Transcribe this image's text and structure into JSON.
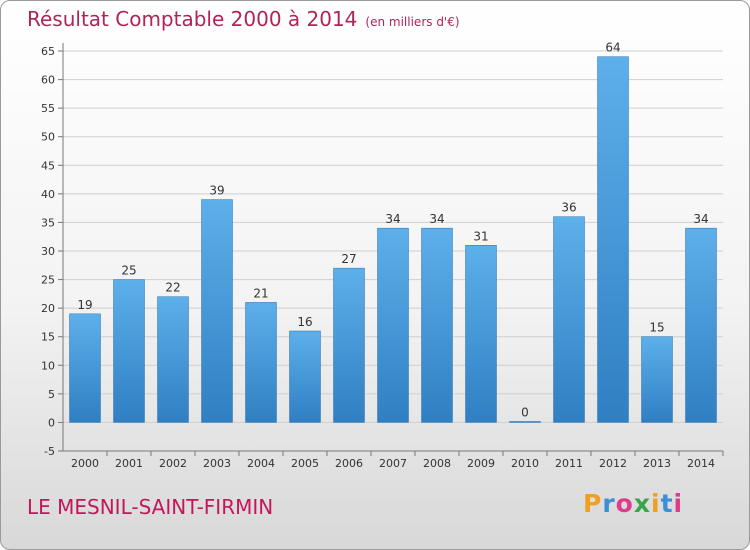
{
  "title": "Résultat Comptable 2000 à 2014",
  "subtitle": "(en milliers d'€)",
  "commune": "LE MESNIL-SAINT-FIRMIN",
  "logo": {
    "letters": [
      "P",
      "r",
      "o",
      "x",
      "i",
      "t",
      "i"
    ],
    "colors": [
      "#f0a020",
      "#3a8fd6",
      "#e03c8c",
      "#3aa64a",
      "#f0a020",
      "#3a8fd6",
      "#e03c8c"
    ]
  },
  "colors": {
    "bar_light": "#5db0ea",
    "bar_dark": "#2f7fc2",
    "grid": "#cfcfcf"
  },
  "chart_data": {
    "type": "bar",
    "categories": [
      "2000",
      "2001",
      "2002",
      "2003",
      "2004",
      "2005",
      "2006",
      "2007",
      "2008",
      "2009",
      "2010",
      "2011",
      "2012",
      "2013",
      "2014"
    ],
    "values": [
      19,
      25,
      22,
      39,
      21,
      16,
      27,
      34,
      34,
      31,
      0,
      36,
      64,
      15,
      34
    ],
    "ylim": [
      -5,
      65
    ],
    "yticks": [
      -5,
      0,
      5,
      10,
      15,
      20,
      25,
      30,
      35,
      40,
      45,
      50,
      55,
      60,
      65
    ],
    "grid": true,
    "legend": "none"
  }
}
